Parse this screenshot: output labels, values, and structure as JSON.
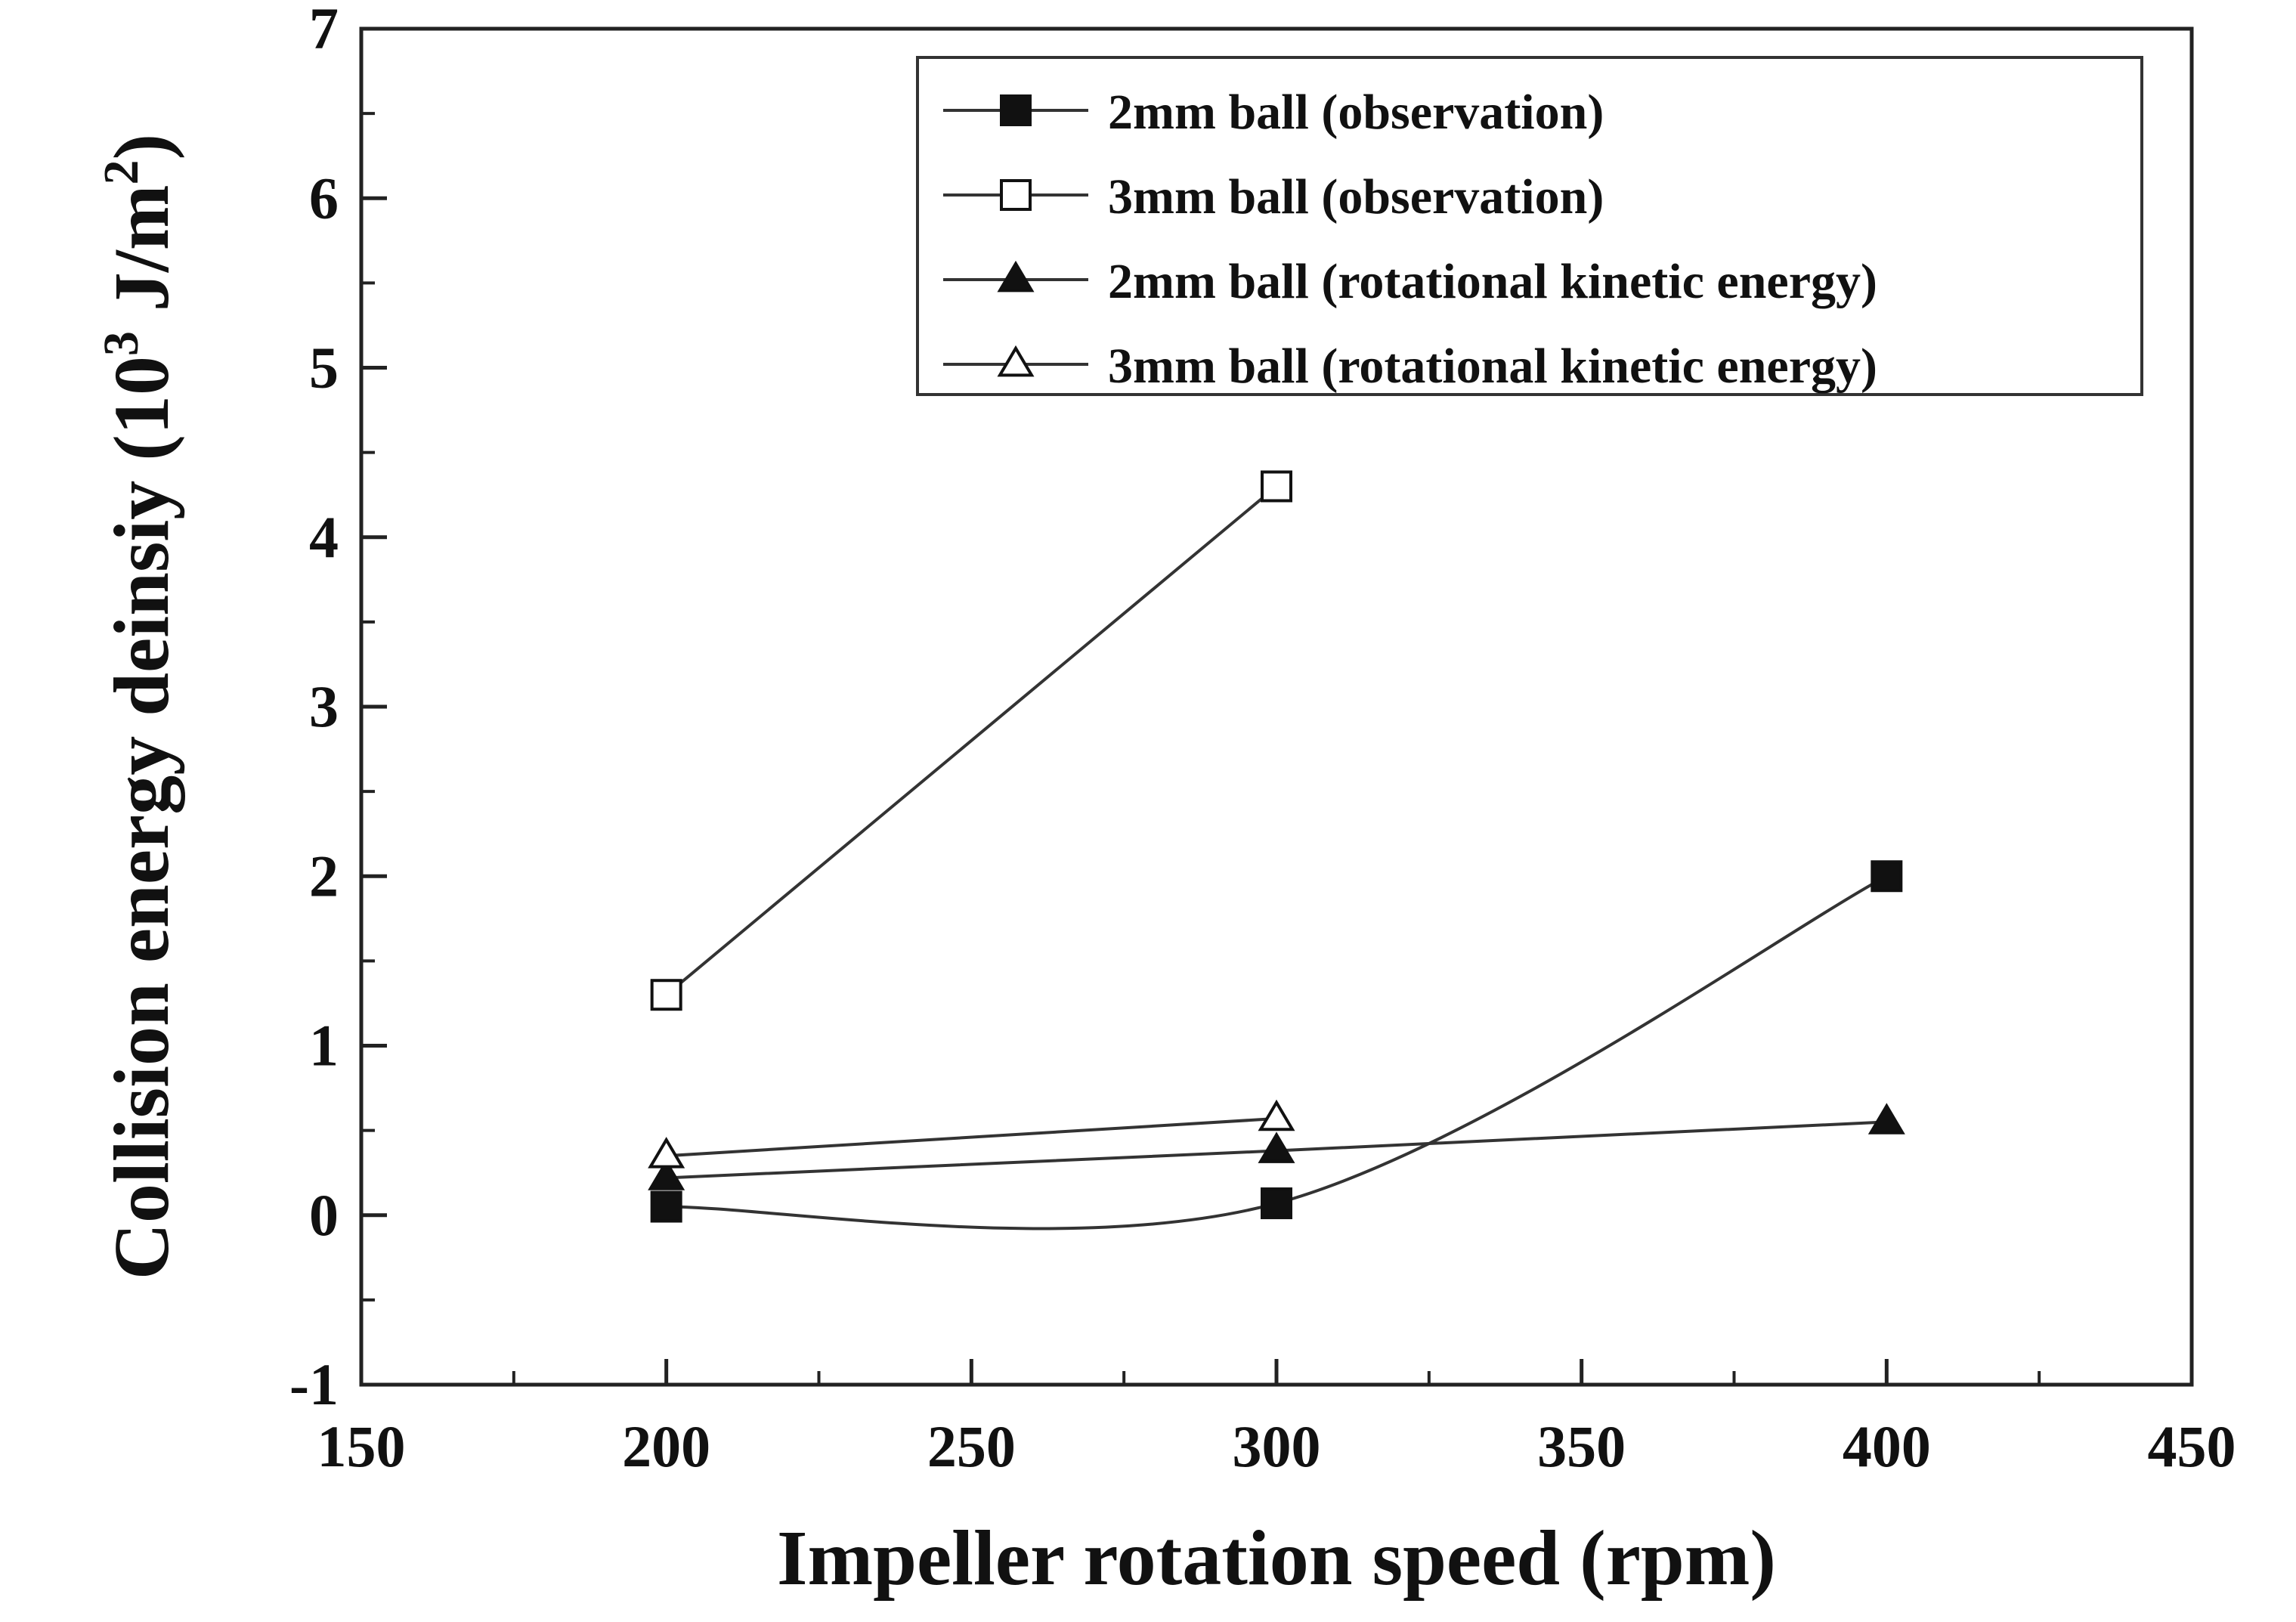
{
  "chart_data": {
    "type": "line",
    "xlabel": "Impeller rotation speed (rpm)",
    "ylabel_main": "Collision energy deinsiy (10",
    "ylabel_sup1": "3",
    "ylabel_mid": " J/m",
    "ylabel_sup2": "2",
    "ylabel_end": ")",
    "xlim": [
      150,
      450
    ],
    "ylim": [
      -1,
      7
    ],
    "xticks": [
      150,
      200,
      250,
      300,
      350,
      400,
      450
    ],
    "yticks": [
      -1,
      0,
      1,
      2,
      3,
      4,
      5,
      6,
      7
    ],
    "xtick_labels": [
      "150",
      "200",
      "250",
      "300",
      "350",
      "400",
      "450"
    ],
    "ytick_labels": [
      "-1",
      "0",
      "1",
      "2",
      "3",
      "4",
      "5",
      "6",
      "7"
    ],
    "grid": false,
    "legend_position": "top-right",
    "series": [
      {
        "name": "2mm ball (observation)",
        "marker": "square",
        "filled": true,
        "smooth": true,
        "x": [
          200,
          300,
          400
        ],
        "y": [
          0.05,
          0.07,
          2.0
        ]
      },
      {
        "name": "3mm ball (observation)",
        "marker": "square",
        "filled": false,
        "smooth": false,
        "x": [
          200,
          300
        ],
        "y": [
          1.3,
          4.3
        ]
      },
      {
        "name": "2mm ball (rotational kinetic energy)",
        "marker": "triangle",
        "filled": true,
        "smooth": false,
        "x": [
          200,
          300,
          400
        ],
        "y": [
          0.22,
          0.38,
          0.55
        ]
      },
      {
        "name": "3mm ball (rotational kinetic energy)",
        "marker": "triangle",
        "filled": false,
        "smooth": false,
        "x": [
          200,
          300
        ],
        "y": [
          0.35,
          0.57
        ]
      }
    ]
  }
}
